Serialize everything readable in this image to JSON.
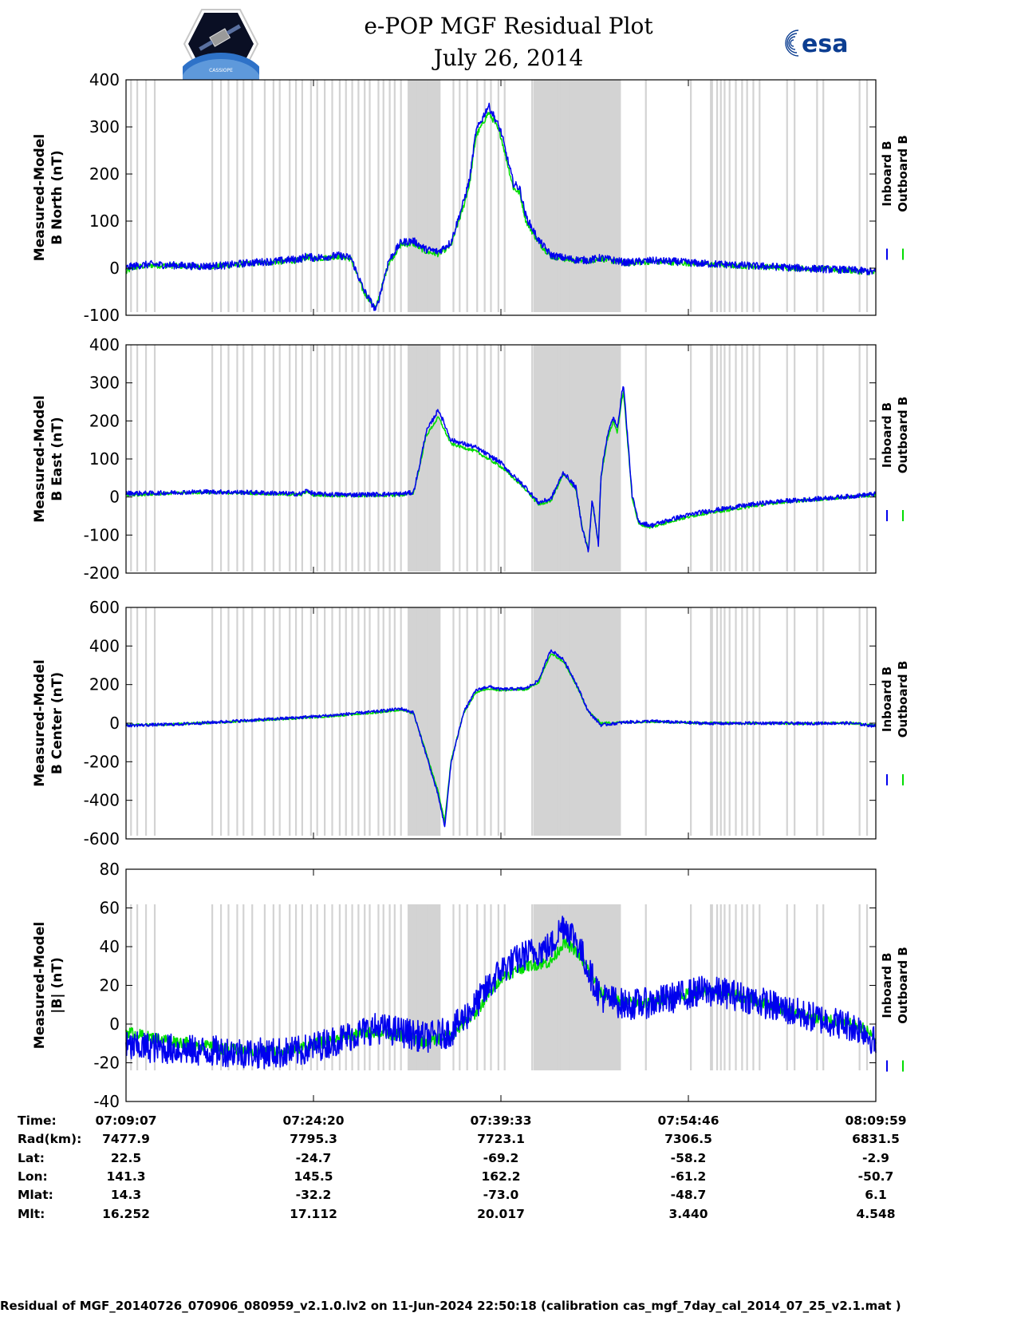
{
  "header": {
    "title_line1": "e-POP MGF Residual Plot",
    "title_line2": "July 26, 2014",
    "left_logo_text": "CASSIOPE",
    "right_logo_text": "esa"
  },
  "chart_data": [
    {
      "type": "line",
      "ylabel": [
        "Measured-Model",
        "B North (nT)"
      ],
      "ylim": [
        -100,
        400
      ],
      "yticks": [
        -100,
        0,
        100,
        200,
        300,
        400
      ],
      "legend": [
        "Inboard B",
        "Outboard B"
      ],
      "legend_position": "right",
      "series": [
        {
          "name": "Outboard B",
          "color": "#00dd00",
          "noise": 6,
          "x": [
            0,
            0.2,
            0.5,
            1,
            2,
            4,
            6,
            8,
            10,
            12,
            14,
            14.5,
            15,
            16,
            17,
            18,
            19,
            20,
            21,
            22,
            23,
            24,
            25,
            26,
            27,
            27.5,
            28,
            29,
            29.5,
            30,
            31,
            31.5,
            32,
            33,
            34,
            35,
            36,
            37,
            38,
            40,
            42,
            44,
            46,
            48,
            50,
            52,
            54,
            56,
            58,
            60
          ],
          "y": [
            -10,
            -5,
            0,
            3,
            6,
            5,
            3,
            5,
            10,
            13,
            17,
            24,
            20,
            22,
            25,
            20,
            -50,
            -85,
            10,
            50,
            52,
            35,
            30,
            48,
            130,
            180,
            280,
            330,
            310,
            280,
            170,
            160,
            100,
            55,
            25,
            20,
            16,
            15,
            20,
            10,
            14,
            12,
            9,
            6,
            4,
            2,
            0,
            -2,
            -5,
            -10
          ]
        },
        {
          "name": "Inboard B",
          "color": "#0000ee",
          "noise": 8,
          "x": [
            0,
            0.2,
            0.5,
            1,
            2,
            4,
            6,
            8,
            10,
            12,
            14,
            14.5,
            15,
            16,
            17,
            18,
            19,
            20,
            21,
            22,
            23,
            24,
            25,
            26,
            27,
            27.5,
            28,
            29,
            29.5,
            30,
            31,
            31.5,
            32,
            33,
            34,
            35,
            36,
            37,
            38,
            40,
            42,
            44,
            46,
            48,
            50,
            52,
            54,
            56,
            58,
            60
          ],
          "y": [
            0,
            2,
            4,
            6,
            8,
            6,
            4,
            6,
            12,
            15,
            20,
            26,
            22,
            24,
            27,
            22,
            -45,
            -90,
            15,
            55,
            58,
            40,
            35,
            55,
            140,
            190,
            290,
            345,
            320,
            290,
            180,
            170,
            110,
            60,
            28,
            22,
            18,
            17,
            22,
            12,
            16,
            14,
            10,
            8,
            5,
            3,
            0,
            -2,
            -4,
            -8
          ]
        }
      ]
    },
    {
      "type": "line",
      "ylabel": [
        "Measured-Model",
        "B East (nT)"
      ],
      "ylim": [
        -200,
        400
      ],
      "yticks": [
        -200,
        -100,
        0,
        100,
        200,
        300,
        400
      ],
      "legend": [
        "Inboard B",
        "Outboard B"
      ],
      "legend_position": "right",
      "series": [
        {
          "name": "Outboard B",
          "color": "#00dd00",
          "noise": 4,
          "x": [
            0,
            0.5,
            2,
            6,
            10,
            14,
            14.5,
            15,
            18,
            22,
            23,
            23.5,
            24,
            25,
            26,
            28,
            30,
            31,
            32,
            33,
            34,
            35,
            36,
            36.5,
            37,
            37.3,
            37.8,
            38,
            38.5,
            39,
            39.3,
            39.8,
            40.5,
            41,
            42,
            44,
            46,
            48,
            50,
            52,
            54,
            56,
            58,
            60
          ],
          "y": [
            5,
            5,
            8,
            12,
            10,
            6,
            15,
            5,
            3,
            5,
            10,
            80,
            160,
            210,
            140,
            120,
            80,
            50,
            20,
            -20,
            -10,
            60,
            20,
            -80,
            -140,
            -10,
            -120,
            50,
            150,
            200,
            170,
            280,
            0,
            -70,
            -80,
            -60,
            -45,
            -35,
            -25,
            -15,
            -10,
            -5,
            0,
            5
          ]
        },
        {
          "name": "Inboard B",
          "color": "#0000ee",
          "noise": 6,
          "x": [
            0,
            0.5,
            2,
            6,
            10,
            14,
            14.5,
            15,
            18,
            22,
            23,
            23.5,
            24,
            25,
            26,
            28,
            30,
            31,
            32,
            33,
            34,
            35,
            36,
            36.5,
            37,
            37.3,
            37.8,
            38,
            38.5,
            39,
            39.3,
            39.8,
            40.5,
            41,
            42,
            44,
            46,
            48,
            50,
            52,
            54,
            56,
            58,
            60
          ],
          "y": [
            10,
            10,
            10,
            14,
            12,
            8,
            18,
            8,
            6,
            8,
            12,
            85,
            170,
            230,
            150,
            130,
            90,
            55,
            25,
            -15,
            -5,
            65,
            25,
            -80,
            -145,
            -5,
            -125,
            55,
            160,
            210,
            180,
            300,
            5,
            -65,
            -75,
            -55,
            -40,
            -30,
            -20,
            -12,
            -8,
            -3,
            2,
            8
          ]
        }
      ]
    },
    {
      "type": "line",
      "ylabel": [
        "Measured-Model",
        "B Center (nT)"
      ],
      "ylim": [
        -600,
        600
      ],
      "yticks": [
        -600,
        -400,
        -200,
        0,
        200,
        400,
        600
      ],
      "legend": [
        "Inboard B",
        "Outboard B"
      ],
      "legend_position": "right",
      "series": [
        {
          "name": "Outboard B",
          "color": "#00dd00",
          "noise": 6,
          "x": [
            0,
            4,
            8,
            12,
            16,
            20,
            22,
            23,
            24,
            25,
            25.5,
            26,
            27,
            28,
            29,
            30,
            32,
            33,
            34,
            35,
            36,
            37,
            38,
            40,
            42,
            44,
            46,
            48,
            50,
            52,
            54,
            56,
            58,
            60
          ],
          "y": [
            -10,
            -5,
            5,
            20,
            35,
            55,
            70,
            50,
            -150,
            -360,
            -510,
            -200,
            50,
            160,
            180,
            170,
            175,
            210,
            360,
            320,
            200,
            60,
            0,
            5,
            8,
            5,
            0,
            0,
            0,
            0,
            -2,
            0,
            0,
            -10
          ]
        },
        {
          "name": "Inboard B",
          "color": "#0000ee",
          "noise": 8,
          "x": [
            0,
            4,
            8,
            12,
            16,
            20,
            22,
            23,
            24,
            25,
            25.5,
            26,
            27,
            28,
            29,
            30,
            32,
            33,
            34,
            35,
            36,
            37,
            38,
            40,
            42,
            44,
            46,
            48,
            50,
            52,
            54,
            56,
            58,
            60
          ],
          "y": [
            -12,
            -6,
            8,
            22,
            38,
            60,
            75,
            55,
            -160,
            -380,
            -540,
            -210,
            55,
            170,
            190,
            175,
            180,
            220,
            380,
            330,
            210,
            60,
            -10,
            5,
            10,
            5,
            0,
            -2,
            0,
            0,
            -2,
            0,
            0,
            -15
          ]
        }
      ]
    },
    {
      "type": "line",
      "ylabel": [
        "Measured-Model",
        "|B| (nT)"
      ],
      "ylim": [
        -40,
        80
      ],
      "yticks": [
        -40,
        -20,
        0,
        20,
        40,
        60,
        80
      ],
      "legend": [
        "Inboard B",
        "Outboard B"
      ],
      "legend_position": "right",
      "series": [
        {
          "name": "Outboard B",
          "color": "#00dd00",
          "noise": 3,
          "x": [
            0,
            2,
            4,
            6,
            8,
            10,
            12,
            14,
            16,
            18,
            20,
            22,
            24,
            26,
            28,
            30,
            32,
            34,
            35,
            36,
            37,
            38,
            40,
            42,
            44,
            46,
            48,
            50,
            52,
            54,
            56,
            58,
            59,
            60
          ],
          "y": [
            -4,
            -7,
            -9,
            -11,
            -13,
            -14,
            -14,
            -12,
            -9,
            -6,
            -4,
            -6,
            -9,
            -6,
            6,
            24,
            30,
            32,
            42,
            38,
            28,
            16,
            11,
            11,
            14,
            17,
            16,
            13,
            9,
            5,
            2,
            0,
            -2,
            -8
          ]
        },
        {
          "name": "Inboard B",
          "color": "#0000ee",
          "noise": 8,
          "x": [
            0,
            2,
            4,
            6,
            8,
            10,
            12,
            14,
            16,
            18,
            20,
            22,
            24,
            26,
            28,
            30,
            32,
            34,
            35,
            36,
            37,
            38,
            40,
            42,
            44,
            46,
            48,
            50,
            52,
            54,
            56,
            58,
            59,
            60
          ],
          "y": [
            -12,
            -12,
            -13,
            -14,
            -14,
            -15,
            -15,
            -14,
            -10,
            -6,
            -2,
            -4,
            -7,
            -4,
            10,
            28,
            36,
            40,
            52,
            44,
            28,
            14,
            10,
            11,
            14,
            17,
            16,
            13,
            9,
            5,
            2,
            -1,
            -3,
            -10
          ]
        }
      ]
    }
  ],
  "gaps": {
    "color": "#d3d3d3",
    "lines": [
      0.4,
      0.9,
      1.6,
      2.3,
      6.9,
      7.6,
      8.2,
      8.9,
      9.4,
      10.1,
      11.1,
      11.8,
      12.3,
      13.1,
      13.6,
      14.1,
      14.8,
      15.3,
      15.9,
      16.5,
      17.1,
      17.6,
      18.1,
      18.6,
      19.1,
      19.5,
      20.2,
      20.6,
      21.1,
      21.5,
      22.0,
      22.6,
      23.2,
      24.1,
      24.6,
      25.1,
      26.2,
      26.7,
      27.3,
      28.1,
      28.7,
      29.2,
      29.8,
      30.3,
      32.5,
      34.4,
      34.8,
      35.4,
      41.6,
      45.2,
      46.8,
      46.9,
      47.3,
      47.6,
      47.9,
      48.3,
      48.8,
      49.3,
      49.7,
      50.2,
      50.7,
      52.9,
      53.5,
      55.3,
      55.8,
      58.7,
      59.3
    ],
    "bands": [
      [
        22.6,
        25.1
      ],
      [
        32.6,
        39.6
      ]
    ]
  },
  "x_axis": {
    "range": [
      0,
      60
    ],
    "ticks": [
      0,
      15,
      30,
      45,
      60
    ]
  },
  "footer_table": {
    "rows": [
      {
        "label": "Time:",
        "values": [
          "07:09:07",
          "07:24:20",
          "07:39:33",
          "07:54:46",
          "08:09:59"
        ]
      },
      {
        "label": "Rad(km):",
        "values": [
          "7477.9",
          "7795.3",
          "7723.1",
          "7306.5",
          "6831.5"
        ]
      },
      {
        "label": "Lat:",
        "values": [
          "22.5",
          "-24.7",
          "-69.2",
          "-58.2",
          "-2.9"
        ]
      },
      {
        "label": "Lon:",
        "values": [
          "141.3",
          "145.5",
          "162.2",
          "-61.2",
          "-50.7"
        ]
      },
      {
        "label": "Mlat:",
        "values": [
          "14.3",
          "-32.2",
          "-73.0",
          "-48.7",
          "6.1"
        ]
      },
      {
        "label": "Mlt:",
        "values": [
          "16.252",
          "17.112",
          "20.017",
          "3.440",
          "4.548"
        ]
      }
    ]
  },
  "footer_text": "Residual of MGF_20140726_070906_080959_v2.1.0.lv2 on 11-Jun-2024 22:50:18 (calibration cas_mgf_7day_cal_2014_07_25_v2.1.mat )"
}
